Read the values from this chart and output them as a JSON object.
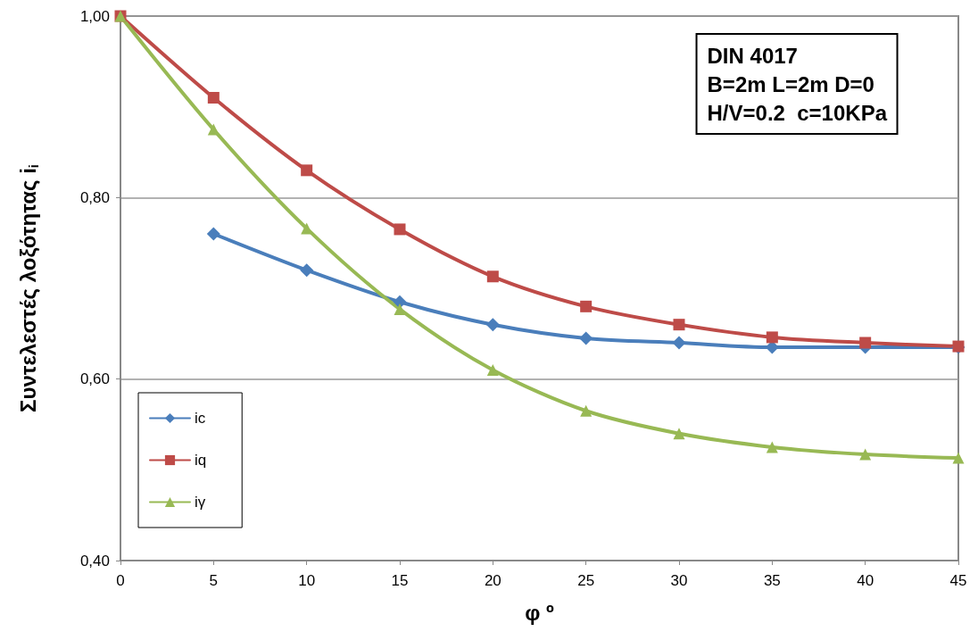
{
  "chart_data": {
    "type": "line",
    "xlabel": "φ º",
    "ylabel": "Συντελεστές λοξότητας i$_{i}$",
    "annotations": [
      "DIN 4017",
      "B=2m L=2m D=0",
      "H/V=0.2  c=10KPa"
    ],
    "series": [
      {
        "name": "ic",
        "color": "#4a7ebb",
        "marker": "diamond",
        "x": [
          5,
          10,
          15,
          20,
          25,
          30,
          35,
          40,
          45
        ],
        "values": [
          0.76,
          0.72,
          0.685,
          0.66,
          0.645,
          0.64,
          0.635,
          0.635,
          0.635
        ]
      },
      {
        "name": "iq",
        "color": "#be4b48",
        "marker": "square",
        "x": [
          0,
          5,
          10,
          15,
          20,
          25,
          30,
          35,
          40,
          45
        ],
        "values": [
          1.0,
          0.91,
          0.83,
          0.765,
          0.713,
          0.68,
          0.66,
          0.646,
          0.64,
          0.636
        ]
      },
      {
        "name": "iγ",
        "color": "#98b954",
        "marker": "triangle",
        "x": [
          0,
          5,
          10,
          15,
          20,
          25,
          30,
          35,
          40,
          45
        ],
        "values": [
          1.0,
          0.875,
          0.766,
          0.677,
          0.61,
          0.565,
          0.54,
          0.525,
          0.517,
          0.513
        ]
      }
    ],
    "xlim": [
      0,
      45
    ],
    "xticks": [
      0,
      5,
      10,
      15,
      20,
      25,
      30,
      35,
      40,
      45
    ],
    "ylim": [
      0.4,
      1.0
    ],
    "yticks": [
      {
        "value": 0.4,
        "label": "0,40"
      },
      {
        "value": 0.6,
        "label": "0,60"
      },
      {
        "value": 0.8,
        "label": "0,80"
      },
      {
        "value": 1.0,
        "label": "1,00"
      }
    ],
    "grid": "y",
    "legend": "bottom left"
  }
}
